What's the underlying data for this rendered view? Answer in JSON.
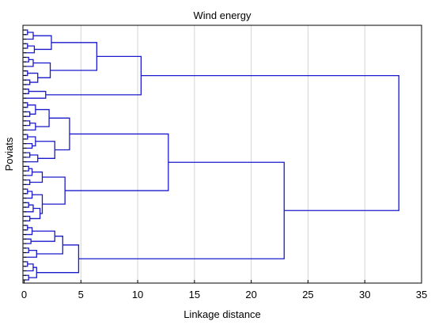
{
  "chart_data": {
    "type": "dendrogram",
    "title": "Wind energy",
    "xlabel": "Linkage distance",
    "ylabel": "Poviats",
    "xlim": [
      0,
      35
    ],
    "x_ticks": [
      "0",
      "5",
      "10",
      "15",
      "20",
      "25",
      "30",
      "35"
    ],
    "grid": true,
    "orientation": "horizontal",
    "leaf_count": 56,
    "line_color": "#1a1acc",
    "merges": [
      {
        "id": "c01",
        "children": [
          "0",
          "1"
        ],
        "height": 0.3
      },
      {
        "id": "c02",
        "children": [
          "c01",
          "2"
        ],
        "height": 0.8
      },
      {
        "id": "c03",
        "children": [
          "3",
          "4"
        ],
        "height": 0.3
      },
      {
        "id": "c04",
        "children": [
          "c03",
          "5"
        ],
        "height": 0.9
      },
      {
        "id": "c05",
        "children": [
          "c02",
          "c04"
        ],
        "height": 2.4
      },
      {
        "id": "c06",
        "children": [
          "6",
          "7"
        ],
        "height": 0.4
      },
      {
        "id": "c07",
        "children": [
          "c06",
          "8"
        ],
        "height": 0.8
      },
      {
        "id": "c08",
        "children": [
          "9",
          "10"
        ],
        "height": 0.3
      },
      {
        "id": "c09",
        "children": [
          "11",
          "12"
        ],
        "height": 0.5
      },
      {
        "id": "c10",
        "children": [
          "c08",
          "c09"
        ],
        "height": 1.2
      },
      {
        "id": "c11",
        "children": [
          "c07",
          "c10"
        ],
        "height": 2.3
      },
      {
        "id": "c12",
        "children": [
          "c05",
          "c11"
        ],
        "height": 6.4
      },
      {
        "id": "c13",
        "children": [
          "13",
          "14"
        ],
        "height": 0.4
      },
      {
        "id": "c14",
        "children": [
          "c13",
          "15"
        ],
        "height": 1.9
      },
      {
        "id": "c15",
        "children": [
          "c12",
          "c14"
        ],
        "height": 10.3
      },
      {
        "id": "c16",
        "children": [
          "16",
          "17"
        ],
        "height": 0.3
      },
      {
        "id": "c17",
        "children": [
          "18",
          "19"
        ],
        "height": 0.5
      },
      {
        "id": "c18",
        "children": [
          "c16",
          "c17"
        ],
        "height": 1.0
      },
      {
        "id": "c19",
        "children": [
          "20",
          "21"
        ],
        "height": 0.5
      },
      {
        "id": "c20",
        "children": [
          "c19",
          "22"
        ],
        "height": 1.0
      },
      {
        "id": "c21",
        "children": [
          "c18",
          "c20"
        ],
        "height": 2.2
      },
      {
        "id": "c22",
        "children": [
          "23",
          "24"
        ],
        "height": 0.3
      },
      {
        "id": "c23",
        "children": [
          "25",
          "26"
        ],
        "height": 0.7
      },
      {
        "id": "c24",
        "children": [
          "c22",
          "c23"
        ],
        "height": 1.0
      },
      {
        "id": "c25",
        "children": [
          "27",
          "28"
        ],
        "height": 0.5
      },
      {
        "id": "c26",
        "children": [
          "c25",
          "29"
        ],
        "height": 1.2
      },
      {
        "id": "c27",
        "children": [
          "c24",
          "c26"
        ],
        "height": 2.7
      },
      {
        "id": "c28",
        "children": [
          "c21",
          "c27"
        ],
        "height": 4.0
      },
      {
        "id": "c29",
        "children": [
          "30",
          "31"
        ],
        "height": 0.4
      },
      {
        "id": "c30",
        "children": [
          "c29",
          "32"
        ],
        "height": 0.7
      },
      {
        "id": "c31",
        "children": [
          "33",
          "34"
        ],
        "height": 0.5
      },
      {
        "id": "c32",
        "children": [
          "c30",
          "c31"
        ],
        "height": 1.6
      },
      {
        "id": "c33",
        "children": [
          "35",
          "36"
        ],
        "height": 0.3
      },
      {
        "id": "c34",
        "children": [
          "c33",
          "37"
        ],
        "height": 0.7
      },
      {
        "id": "c35",
        "children": [
          "38",
          "39"
        ],
        "height": 0.4
      },
      {
        "id": "c36",
        "children": [
          "c35",
          "40"
        ],
        "height": 0.8
      },
      {
        "id": "c37",
        "children": [
          "41",
          "42"
        ],
        "height": 0.5
      },
      {
        "id": "c38",
        "children": [
          "c36",
          "c37"
        ],
        "height": 1.4
      },
      {
        "id": "c39",
        "children": [
          "c34",
          "c38"
        ],
        "height": 1.6
      },
      {
        "id": "c40",
        "children": [
          "c32",
          "c39"
        ],
        "height": 3.6
      },
      {
        "id": "c41",
        "children": [
          "c28",
          "c40"
        ],
        "height": 12.7
      },
      {
        "id": "c42",
        "children": [
          "43",
          "44"
        ],
        "height": 0.3
      },
      {
        "id": "c43",
        "children": [
          "c42",
          "45"
        ],
        "height": 0.7
      },
      {
        "id": "c44",
        "children": [
          "46",
          "47"
        ],
        "height": 0.6
      },
      {
        "id": "c45",
        "children": [
          "c43",
          "c44"
        ],
        "height": 2.7
      },
      {
        "id": "c46",
        "children": [
          "48",
          "49"
        ],
        "height": 0.4
      },
      {
        "id": "c47",
        "children": [
          "c46",
          "50"
        ],
        "height": 1.1
      },
      {
        "id": "c48",
        "children": [
          "c45",
          "c47"
        ],
        "height": 3.4
      },
      {
        "id": "c49",
        "children": [
          "51",
          "52"
        ],
        "height": 0.3
      },
      {
        "id": "c50",
        "children": [
          "c49",
          "53"
        ],
        "height": 0.8
      },
      {
        "id": "c51",
        "children": [
          "54",
          "55"
        ],
        "height": 0.4
      },
      {
        "id": "c52",
        "children": [
          "c50",
          "c51"
        ],
        "height": 1.1
      },
      {
        "id": "c53",
        "children": [
          "c48",
          "c52"
        ],
        "height": 4.8
      },
      {
        "id": "c54",
        "children": [
          "c41",
          "c53"
        ],
        "height": 22.9
      },
      {
        "id": "c55",
        "children": [
          "c15",
          "c54"
        ],
        "height": 33.0
      }
    ]
  }
}
